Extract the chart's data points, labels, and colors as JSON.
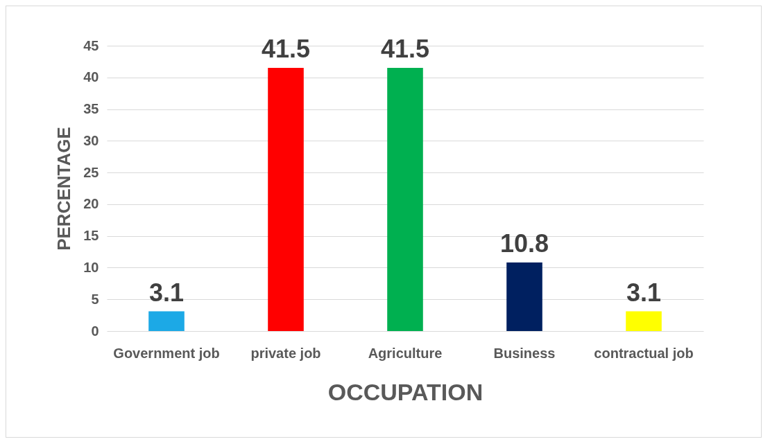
{
  "chart_data": {
    "type": "bar",
    "xlabel": "OCCUPATION",
    "ylabel": "PERCENTAGE",
    "categories": [
      "Government job",
      "private job",
      "Agriculture",
      "Business",
      "contractual job"
    ],
    "values": [
      3.1,
      41.5,
      41.5,
      10.8,
      3.1
    ],
    "colors": [
      "#1ca9e6",
      "#ff0000",
      "#00b050",
      "#002060",
      "#ffff00"
    ],
    "ylim": [
      0,
      45
    ],
    "yticks": [
      0,
      5,
      10,
      15,
      20,
      25,
      30,
      35,
      40,
      45
    ],
    "grid": "y",
    "data_labels": true
  }
}
